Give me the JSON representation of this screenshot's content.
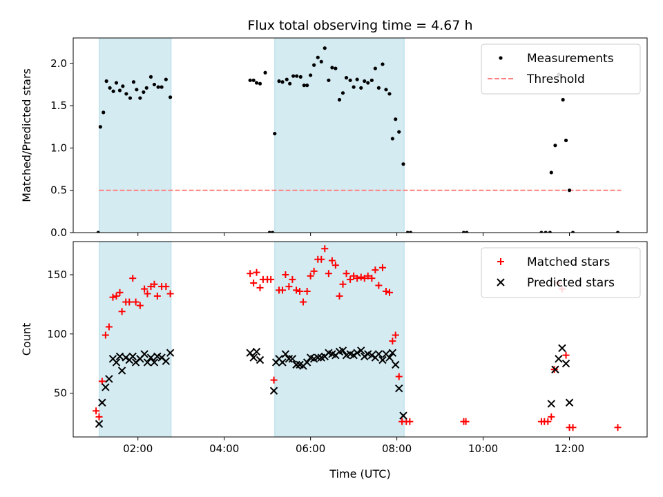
{
  "chart_data": [
    {
      "type": "scatter",
      "title": "Flux total observing time = 4.67 h",
      "xlabel": "",
      "ylabel": "Matched/Predicted stars",
      "xlim_hours": [
        0.5,
        13.8
      ],
      "ylim": [
        0,
        2.3
      ],
      "yticks": [
        0.0,
        0.5,
        1.0,
        1.5,
        2.0
      ],
      "ytick_labels": [
        "0.0",
        "0.5",
        "1.0",
        "1.5",
        "2.0"
      ],
      "legend_position": "top-right",
      "shaded_intervals_hours": [
        [
          1.1,
          2.77
        ],
        [
          5.17,
          8.17
        ]
      ],
      "shade_color": "#add8e6",
      "threshold": {
        "name": "Threshold",
        "value": 0.5,
        "x_range_hours": [
          1.1,
          13.2
        ],
        "color": "#ff7f7f"
      },
      "series": [
        {
          "name": "Measurements",
          "color": "#000000",
          "marker": "dot",
          "points": [
            [
              1.08,
              0.0
            ],
            [
              1.13,
              1.25
            ],
            [
              1.2,
              1.42
            ],
            [
              1.27,
              1.79
            ],
            [
              1.35,
              1.71
            ],
            [
              1.43,
              1.67
            ],
            [
              1.5,
              1.77
            ],
            [
              1.58,
              1.68
            ],
            [
              1.65,
              1.73
            ],
            [
              1.73,
              1.64
            ],
            [
              1.82,
              1.59
            ],
            [
              1.9,
              1.78
            ],
            [
              1.97,
              1.69
            ],
            [
              2.05,
              1.59
            ],
            [
              2.13,
              1.66
            ],
            [
              2.2,
              1.71
            ],
            [
              2.3,
              1.84
            ],
            [
              2.38,
              1.75
            ],
            [
              2.47,
              1.72
            ],
            [
              2.55,
              1.72
            ],
            [
              2.65,
              1.81
            ],
            [
              2.75,
              1.6
            ],
            [
              4.6,
              1.8
            ],
            [
              4.68,
              1.8
            ],
            [
              4.75,
              1.77
            ],
            [
              4.83,
              1.76
            ],
            [
              4.95,
              1.89
            ],
            [
              5.05,
              0.0
            ],
            [
              5.12,
              0.0
            ],
            [
              5.17,
              1.17
            ],
            [
              5.27,
              1.79
            ],
            [
              5.35,
              1.78
            ],
            [
              5.45,
              1.81
            ],
            [
              5.52,
              1.76
            ],
            [
              5.6,
              1.85
            ],
            [
              5.68,
              1.85
            ],
            [
              5.77,
              1.84
            ],
            [
              5.85,
              1.74
            ],
            [
              5.92,
              1.74
            ],
            [
              6.0,
              1.86
            ],
            [
              6.08,
              1.98
            ],
            [
              6.17,
              2.07
            ],
            [
              6.25,
              2.02
            ],
            [
              6.33,
              2.18
            ],
            [
              6.42,
              1.8
            ],
            [
              6.5,
              1.95
            ],
            [
              6.58,
              1.94
            ],
            [
              6.67,
              1.57
            ],
            [
              6.75,
              1.65
            ],
            [
              6.83,
              1.83
            ],
            [
              6.92,
              1.8
            ],
            [
              7.0,
              1.72
            ],
            [
              7.08,
              1.81
            ],
            [
              7.17,
              1.71
            ],
            [
              7.25,
              1.79
            ],
            [
              7.33,
              1.77
            ],
            [
              7.42,
              1.8
            ],
            [
              7.5,
              1.94
            ],
            [
              7.58,
              1.71
            ],
            [
              7.67,
              1.99
            ],
            [
              7.75,
              1.69
            ],
            [
              7.83,
              1.64
            ],
            [
              7.9,
              1.11
            ],
            [
              7.97,
              1.34
            ],
            [
              8.05,
              1.19
            ],
            [
              8.15,
              0.81
            ],
            [
              8.25,
              0.0
            ],
            [
              8.32,
              0.0
            ],
            [
              9.55,
              0.0
            ],
            [
              9.62,
              0.0
            ],
            [
              11.35,
              0.0
            ],
            [
              11.45,
              0.0
            ],
            [
              11.55,
              0.0
            ],
            [
              11.58,
              0.71
            ],
            [
              11.67,
              1.03
            ],
            [
              11.75,
              1.87
            ],
            [
              11.85,
              1.57
            ],
            [
              11.92,
              1.09
            ],
            [
              12.0,
              0.5
            ],
            [
              12.08,
              0.0
            ],
            [
              13.12,
              0.0
            ]
          ]
        }
      ]
    },
    {
      "type": "scatter",
      "title": "",
      "xlabel": "Time (UTC)",
      "ylabel": "Count",
      "xlim_hours": [
        0.5,
        13.8
      ],
      "ylim": [
        13,
        178
      ],
      "xticks_hours": [
        2,
        4,
        6,
        8,
        10,
        12
      ],
      "xtick_labels": [
        "02:00",
        "04:00",
        "06:00",
        "08:00",
        "10:00",
        "12:00"
      ],
      "yticks": [
        50,
        100,
        150
      ],
      "ytick_labels": [
        "50",
        "100",
        "150"
      ],
      "legend_position": "top-right",
      "shaded_intervals_hours": [
        [
          1.1,
          2.77
        ],
        [
          5.17,
          8.17
        ]
      ],
      "shade_color": "#add8e6",
      "series": [
        {
          "name": "Matched stars",
          "color": "#ff0000",
          "marker": "plus",
          "points": [
            [
              1.03,
              35
            ],
            [
              1.1,
              30
            ],
            [
              1.17,
              60
            ],
            [
              1.25,
              99
            ],
            [
              1.33,
              106
            ],
            [
              1.42,
              131
            ],
            [
              1.5,
              132
            ],
            [
              1.58,
              135
            ],
            [
              1.63,
              119
            ],
            [
              1.72,
              127
            ],
            [
              1.8,
              127
            ],
            [
              1.88,
              147
            ],
            [
              1.95,
              127
            ],
            [
              2.05,
              124
            ],
            [
              2.15,
              138
            ],
            [
              2.22,
              134
            ],
            [
              2.3,
              140
            ],
            [
              2.38,
              142
            ],
            [
              2.45,
              132
            ],
            [
              2.55,
              140
            ],
            [
              2.65,
              140
            ],
            [
              2.75,
              134
            ],
            [
              4.6,
              151
            ],
            [
              4.68,
              143
            ],
            [
              4.75,
              152
            ],
            [
              4.83,
              139
            ],
            [
              4.9,
              146
            ],
            [
              5.0,
              146
            ],
            [
              5.08,
              146
            ],
            [
              5.15,
              61
            ],
            [
              5.27,
              137
            ],
            [
              5.35,
              137
            ],
            [
              5.42,
              150
            ],
            [
              5.5,
              140
            ],
            [
              5.58,
              146
            ],
            [
              5.67,
              137
            ],
            [
              5.75,
              136
            ],
            [
              5.83,
              127
            ],
            [
              5.92,
              136
            ],
            [
              6.0,
              149
            ],
            [
              6.08,
              153
            ],
            [
              6.17,
              163
            ],
            [
              6.25,
              163
            ],
            [
              6.33,
              172
            ],
            [
              6.42,
              151
            ],
            [
              6.5,
              162
            ],
            [
              6.58,
              158
            ],
            [
              6.67,
              132
            ],
            [
              6.75,
              142
            ],
            [
              6.83,
              151
            ],
            [
              6.92,
              146
            ],
            [
              7.0,
              149
            ],
            [
              7.08,
              147
            ],
            [
              7.17,
              148
            ],
            [
              7.25,
              147
            ],
            [
              7.33,
              149
            ],
            [
              7.42,
              147
            ],
            [
              7.5,
              154
            ],
            [
              7.58,
              141
            ],
            [
              7.67,
              156
            ],
            [
              7.75,
              136
            ],
            [
              7.83,
              135
            ],
            [
              7.9,
              94
            ],
            [
              7.97,
              99
            ],
            [
              8.05,
              64
            ],
            [
              8.12,
              26
            ],
            [
              8.22,
              26
            ],
            [
              8.3,
              26
            ],
            [
              9.55,
              26
            ],
            [
              9.6,
              26
            ],
            [
              11.35,
              26
            ],
            [
              11.42,
              26
            ],
            [
              11.5,
              26
            ],
            [
              11.58,
              30
            ],
            [
              11.65,
              70
            ],
            [
              11.75,
              143
            ],
            [
              11.83,
              138
            ],
            [
              11.92,
              82
            ],
            [
              12.0,
              21
            ],
            [
              12.08,
              21
            ],
            [
              13.12,
              21
            ]
          ]
        },
        {
          "name": "Predicted stars",
          "color": "#000000",
          "marker": "x",
          "points": [
            [
              1.1,
              24
            ],
            [
              1.17,
              42
            ],
            [
              1.25,
              55
            ],
            [
              1.33,
              62
            ],
            [
              1.42,
              79
            ],
            [
              1.5,
              76
            ],
            [
              1.58,
              81
            ],
            [
              1.63,
              69
            ],
            [
              1.72,
              80
            ],
            [
              1.8,
              78
            ],
            [
              1.88,
              81
            ],
            [
              1.95,
              76
            ],
            [
              2.05,
              79
            ],
            [
              2.15,
              83
            ],
            [
              2.22,
              76
            ],
            [
              2.3,
              80
            ],
            [
              2.38,
              76
            ],
            [
              2.45,
              81
            ],
            [
              2.55,
              80
            ],
            [
              2.65,
              77
            ],
            [
              2.75,
              84
            ],
            [
              4.6,
              84
            ],
            [
              4.68,
              80
            ],
            [
              4.75,
              85
            ],
            [
              4.83,
              78
            ],
            [
              5.15,
              52
            ],
            [
              5.2,
              76
            ],
            [
              5.27,
              79
            ],
            [
              5.35,
              76
            ],
            [
              5.42,
              83
            ],
            [
              5.5,
              79
            ],
            [
              5.58,
              79
            ],
            [
              5.67,
              74
            ],
            [
              5.75,
              74
            ],
            [
              5.83,
              73
            ],
            [
              5.92,
              76
            ],
            [
              6.0,
              80
            ],
            [
              6.08,
              79
            ],
            [
              6.17,
              80
            ],
            [
              6.25,
              80
            ],
            [
              6.33,
              81
            ],
            [
              6.42,
              84
            ],
            [
              6.5,
              83
            ],
            [
              6.58,
              82
            ],
            [
              6.67,
              85
            ],
            [
              6.75,
              86
            ],
            [
              6.83,
              82
            ],
            [
              6.92,
              83
            ],
            [
              7.0,
              82
            ],
            [
              7.08,
              84
            ],
            [
              7.17,
              86
            ],
            [
              7.25,
              81
            ],
            [
              7.33,
              83
            ],
            [
              7.42,
              82
            ],
            [
              7.5,
              80
            ],
            [
              7.58,
              83
            ],
            [
              7.67,
              78
            ],
            [
              7.75,
              83
            ],
            [
              7.83,
              80
            ],
            [
              7.9,
              84
            ],
            [
              7.97,
              74
            ],
            [
              8.05,
              54
            ],
            [
              8.15,
              31
            ],
            [
              11.58,
              41
            ],
            [
              11.67,
              70
            ],
            [
              11.75,
              79
            ],
            [
              11.83,
              88
            ],
            [
              11.92,
              75
            ],
            [
              12.0,
              42
            ]
          ]
        }
      ]
    }
  ]
}
